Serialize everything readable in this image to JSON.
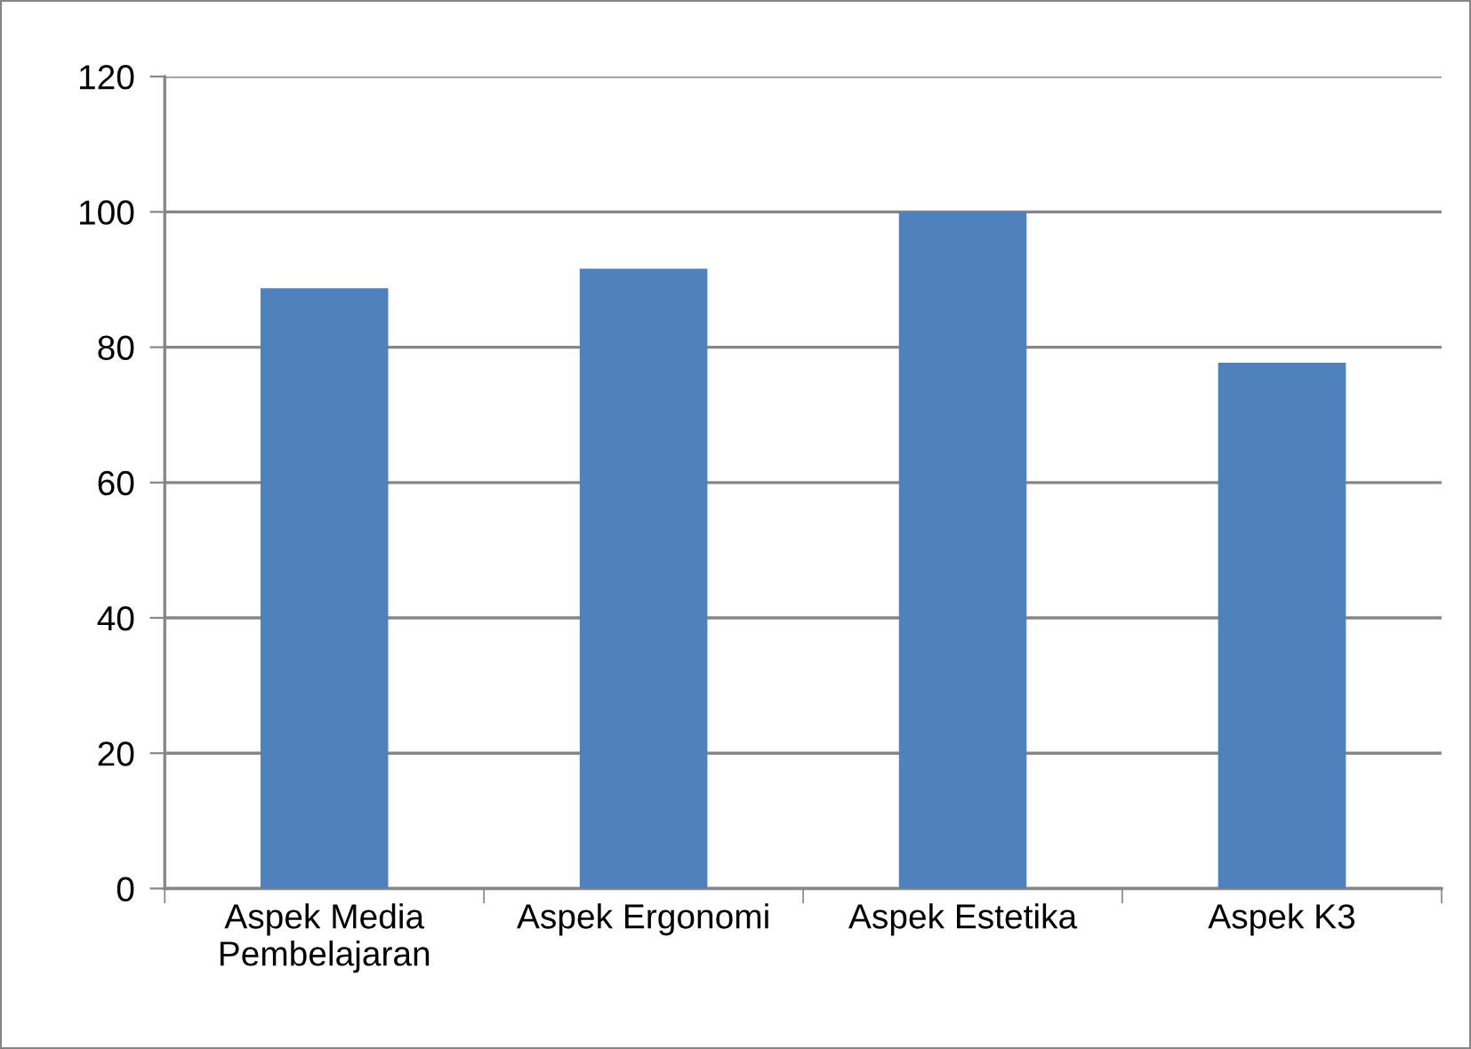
{
  "chart_data": {
    "type": "bar",
    "categories": [
      "Aspek Media\nPembelajaran",
      "Aspek Ergonomi",
      "Aspek Estetika",
      "Aspek K3"
    ],
    "values": [
      88.7,
      91.6,
      100,
      77.7
    ],
    "color": "#4f81bd",
    "ylim": [
      0,
      120
    ],
    "yticks": [
      0,
      20,
      40,
      60,
      80,
      100,
      120
    ],
    "grid": "y",
    "legend": false
  }
}
